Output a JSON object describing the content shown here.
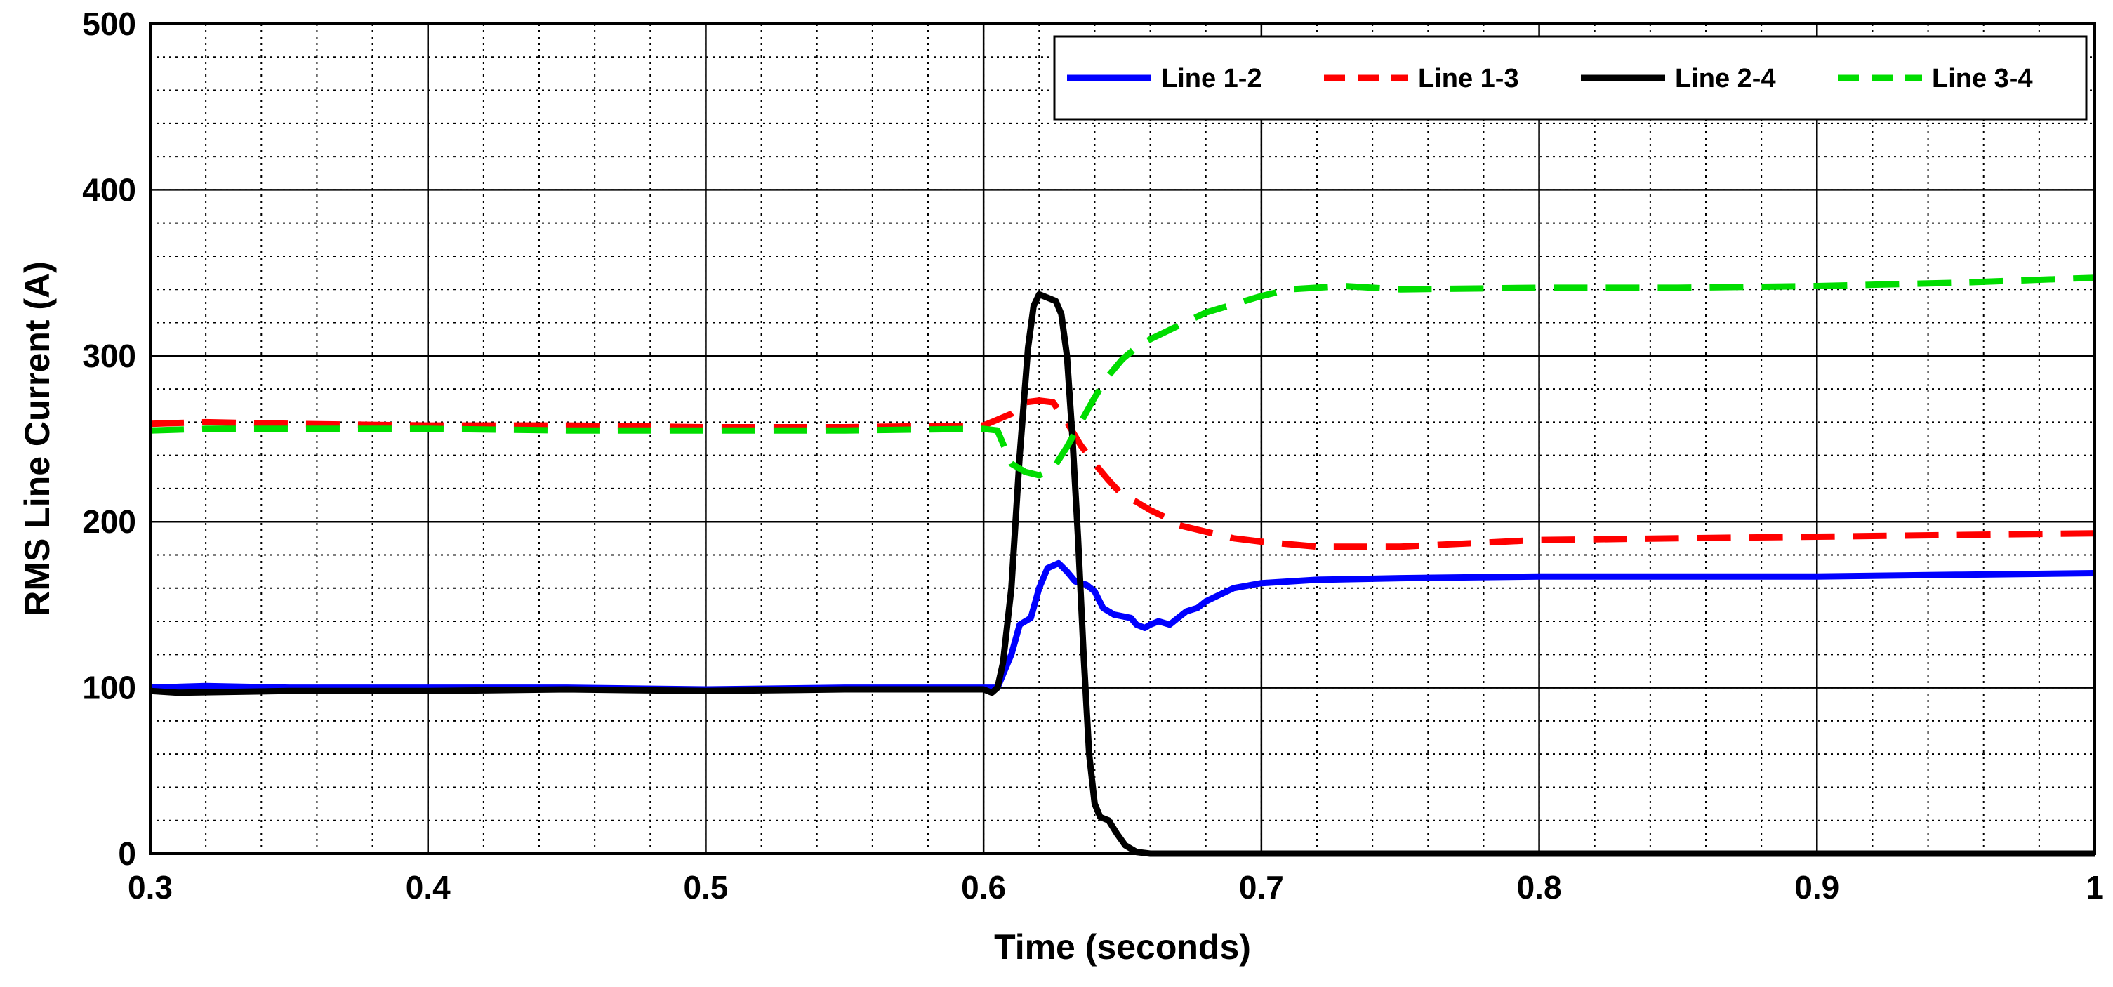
{
  "chart_data": {
    "type": "line",
    "title": "",
    "xlabel": "Time (seconds)",
    "ylabel": "RMS Line Current (A)",
    "xlim": [
      0.3,
      1.0
    ],
    "ylim": [
      0,
      500
    ],
    "xticks": [
      0.3,
      0.4,
      0.5,
      0.6,
      0.7,
      0.8,
      0.9,
      1.0
    ],
    "xtick_labels": [
      "0.3",
      "0.4",
      "0.5",
      "0.6",
      "0.7",
      "0.8",
      "0.9",
      "1"
    ],
    "yticks": [
      0,
      100,
      200,
      300,
      400,
      500
    ],
    "ytick_labels": [
      "0",
      "100",
      "200",
      "300",
      "400",
      "500"
    ],
    "grid": true,
    "legend_position": "top-right",
    "series": [
      {
        "name": "Line 1-2",
        "color": "#0000ff",
        "style": "solid",
        "points": [
          [
            0.3,
            100
          ],
          [
            0.32,
            101
          ],
          [
            0.35,
            100
          ],
          [
            0.4,
            100
          ],
          [
            0.45,
            100
          ],
          [
            0.5,
            99
          ],
          [
            0.55,
            100
          ],
          [
            0.6,
            100
          ],
          [
            0.605,
            100
          ],
          [
            0.61,
            120
          ],
          [
            0.613,
            138
          ],
          [
            0.617,
            142
          ],
          [
            0.62,
            160
          ],
          [
            0.623,
            172
          ],
          [
            0.627,
            175
          ],
          [
            0.63,
            170
          ],
          [
            0.633,
            164
          ],
          [
            0.637,
            162
          ],
          [
            0.64,
            158
          ],
          [
            0.643,
            148
          ],
          [
            0.647,
            144
          ],
          [
            0.65,
            143
          ],
          [
            0.653,
            142
          ],
          [
            0.655,
            138
          ],
          [
            0.658,
            136
          ],
          [
            0.66,
            138
          ],
          [
            0.663,
            140
          ],
          [
            0.667,
            138
          ],
          [
            0.67,
            142
          ],
          [
            0.673,
            146
          ],
          [
            0.677,
            148
          ],
          [
            0.68,
            152
          ],
          [
            0.685,
            156
          ],
          [
            0.69,
            160
          ],
          [
            0.7,
            163
          ],
          [
            0.72,
            165
          ],
          [
            0.75,
            166
          ],
          [
            0.8,
            167
          ],
          [
            0.85,
            167
          ],
          [
            0.9,
            167
          ],
          [
            0.95,
            168
          ],
          [
            1.0,
            169
          ]
        ]
      },
      {
        "name": "Line 1-3",
        "color": "#ff0000",
        "style": "dashed",
        "points": [
          [
            0.3,
            259
          ],
          [
            0.32,
            260
          ],
          [
            0.35,
            259
          ],
          [
            0.4,
            258
          ],
          [
            0.45,
            258
          ],
          [
            0.5,
            257
          ],
          [
            0.55,
            257
          ],
          [
            0.6,
            258
          ],
          [
            0.61,
            265
          ],
          [
            0.615,
            272
          ],
          [
            0.62,
            273
          ],
          [
            0.625,
            272
          ],
          [
            0.63,
            260
          ],
          [
            0.635,
            246
          ],
          [
            0.64,
            235
          ],
          [
            0.645,
            225
          ],
          [
            0.65,
            216
          ],
          [
            0.655,
            212
          ],
          [
            0.66,
            207
          ],
          [
            0.665,
            203
          ],
          [
            0.67,
            198
          ],
          [
            0.68,
            194
          ],
          [
            0.69,
            190
          ],
          [
            0.7,
            188
          ],
          [
            0.72,
            185
          ],
          [
            0.75,
            185
          ],
          [
            0.8,
            189
          ],
          [
            0.85,
            190
          ],
          [
            0.9,
            191
          ],
          [
            0.95,
            192
          ],
          [
            1.0,
            193
          ]
        ]
      },
      {
        "name": "Line 2-4",
        "color": "#000000",
        "style": "solid",
        "points": [
          [
            0.3,
            98
          ],
          [
            0.31,
            97
          ],
          [
            0.35,
            98
          ],
          [
            0.4,
            98
          ],
          [
            0.45,
            99
          ],
          [
            0.5,
            98
          ],
          [
            0.55,
            99
          ],
          [
            0.6,
            99
          ],
          [
            0.603,
            97
          ],
          [
            0.605,
            100
          ],
          [
            0.607,
            115
          ],
          [
            0.61,
            160
          ],
          [
            0.613,
            240
          ],
          [
            0.616,
            305
          ],
          [
            0.618,
            330
          ],
          [
            0.62,
            337
          ],
          [
            0.623,
            335
          ],
          [
            0.626,
            333
          ],
          [
            0.628,
            325
          ],
          [
            0.63,
            300
          ],
          [
            0.632,
            250
          ],
          [
            0.634,
            190
          ],
          [
            0.636,
            120
          ],
          [
            0.638,
            60
          ],
          [
            0.64,
            30
          ],
          [
            0.642,
            22
          ],
          [
            0.645,
            20
          ],
          [
            0.648,
            12
          ],
          [
            0.651,
            5
          ],
          [
            0.655,
            1
          ],
          [
            0.66,
            0
          ],
          [
            0.7,
            0
          ],
          [
            0.8,
            0
          ],
          [
            0.9,
            0
          ],
          [
            1.0,
            0
          ]
        ]
      },
      {
        "name": "Line 3-4",
        "color": "#00dd00",
        "style": "dashed",
        "points": [
          [
            0.3,
            255
          ],
          [
            0.32,
            256
          ],
          [
            0.35,
            256
          ],
          [
            0.4,
            256
          ],
          [
            0.45,
            255
          ],
          [
            0.5,
            255
          ],
          [
            0.55,
            255
          ],
          [
            0.6,
            256
          ],
          [
            0.605,
            255
          ],
          [
            0.61,
            235
          ],
          [
            0.615,
            230
          ],
          [
            0.62,
            228
          ],
          [
            0.625,
            232
          ],
          [
            0.63,
            245
          ],
          [
            0.635,
            260
          ],
          [
            0.64,
            275
          ],
          [
            0.645,
            288
          ],
          [
            0.65,
            298
          ],
          [
            0.655,
            305
          ],
          [
            0.66,
            310
          ],
          [
            0.665,
            314
          ],
          [
            0.67,
            318
          ],
          [
            0.675,
            322
          ],
          [
            0.68,
            326
          ],
          [
            0.69,
            331
          ],
          [
            0.7,
            336
          ],
          [
            0.71,
            340
          ],
          [
            0.73,
            342
          ],
          [
            0.75,
            340
          ],
          [
            0.8,
            341
          ],
          [
            0.85,
            341
          ],
          [
            0.9,
            342
          ],
          [
            0.95,
            344
          ],
          [
            1.0,
            347
          ]
        ]
      }
    ]
  }
}
